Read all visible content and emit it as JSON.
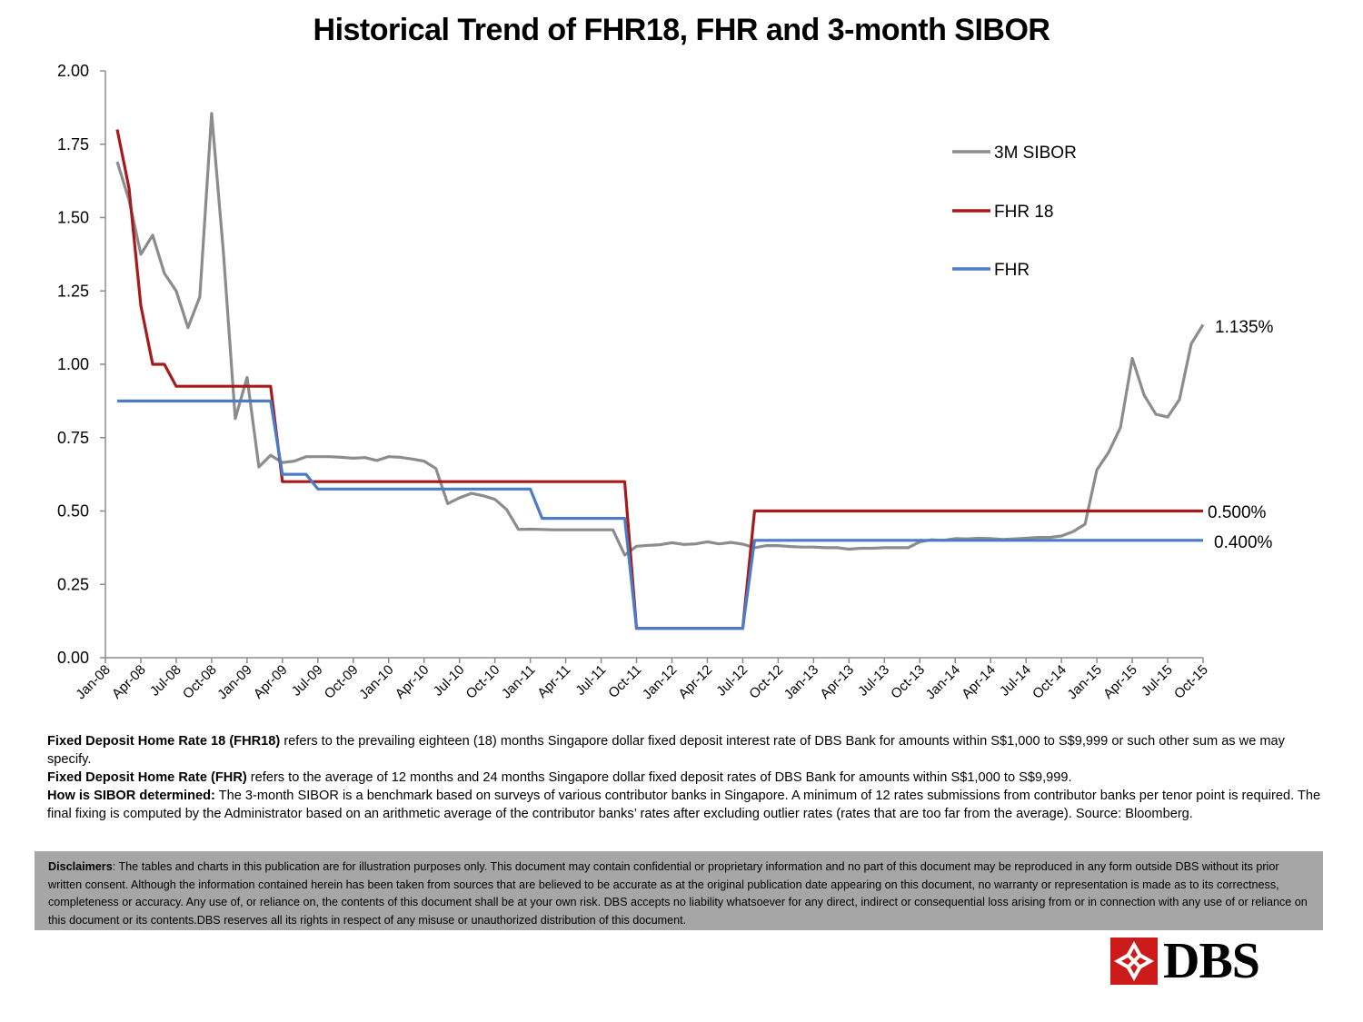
{
  "chart_data": {
    "type": "line",
    "title": "Historical Trend of FHR18, FHR and 3-month SIBOR",
    "ylim": [
      0,
      2
    ],
    "yticks": [
      "0.00",
      "0.25",
      "0.50",
      "0.75",
      "1.00",
      "1.25",
      "1.50",
      "1.75",
      "2.00"
    ],
    "xtick_labels": [
      "Jan-08",
      "Apr-08",
      "Jul-08",
      "Oct-08",
      "Jan-09",
      "Apr-09",
      "Jul-09",
      "Oct-09",
      "Jan-10",
      "Apr-10",
      "Jul-10",
      "Oct-10",
      "Jan-11",
      "Apr-11",
      "Jul-11",
      "Oct-11",
      "Jan-12",
      "Apr-12",
      "Jul-12",
      "Oct-12",
      "Jan-13",
      "Apr-13",
      "Jul-13",
      "Oct-13",
      "Jan-14",
      "Apr-14",
      "Jul-14",
      "Oct-14",
      "Jan-15",
      "Apr-15",
      "Jul-15",
      "Oct-15"
    ],
    "x_range_months": [
      0,
      93
    ],
    "grid": false,
    "legend_position": "top-right",
    "series": [
      {
        "name": "3M SIBOR",
        "color": "#8c8c8c",
        "end_label": "1.135%",
        "points": [
          [
            1,
            1.69
          ],
          [
            2,
            1.56
          ],
          [
            3,
            1.375
          ],
          [
            4,
            1.44
          ],
          [
            5,
            1.31
          ],
          [
            6,
            1.25
          ],
          [
            7,
            1.125
          ],
          [
            8,
            1.23
          ],
          [
            9,
            1.855
          ],
          [
            10,
            1.38
          ],
          [
            11,
            0.815
          ],
          [
            12,
            0.955
          ],
          [
            13,
            0.65
          ],
          [
            14,
            0.69
          ],
          [
            15,
            0.665
          ],
          [
            16,
            0.67
          ],
          [
            17,
            0.685
          ],
          [
            18,
            0.685
          ],
          [
            19,
            0.685
          ],
          [
            20,
            0.683
          ],
          [
            21,
            0.68
          ],
          [
            22,
            0.682
          ],
          [
            23,
            0.672
          ],
          [
            24,
            0.685
          ],
          [
            25,
            0.683
          ],
          [
            26,
            0.677
          ],
          [
            27,
            0.67
          ],
          [
            28,
            0.645
          ],
          [
            29,
            0.525
          ],
          [
            30,
            0.545
          ],
          [
            31,
            0.56
          ],
          [
            32,
            0.552
          ],
          [
            33,
            0.54
          ],
          [
            34,
            0.505
          ],
          [
            35,
            0.437
          ],
          [
            36,
            0.438
          ],
          [
            37,
            0.437
          ],
          [
            38,
            0.436
          ],
          [
            39,
            0.436
          ],
          [
            40,
            0.436
          ],
          [
            41,
            0.436
          ],
          [
            42,
            0.436
          ],
          [
            43,
            0.436
          ],
          [
            44,
            0.35
          ],
          [
            45,
            0.38
          ],
          [
            46,
            0.383
          ],
          [
            47,
            0.385
          ],
          [
            48,
            0.392
          ],
          [
            49,
            0.386
          ],
          [
            50,
            0.388
          ],
          [
            51,
            0.395
          ],
          [
            52,
            0.388
          ],
          [
            53,
            0.393
          ],
          [
            54,
            0.387
          ],
          [
            55,
            0.375
          ],
          [
            56,
            0.382
          ],
          [
            57,
            0.382
          ],
          [
            58,
            0.379
          ],
          [
            59,
            0.377
          ],
          [
            60,
            0.377
          ],
          [
            61,
            0.375
          ],
          [
            62,
            0.375
          ],
          [
            63,
            0.37
          ],
          [
            64,
            0.373
          ],
          [
            65,
            0.373
          ],
          [
            66,
            0.375
          ],
          [
            67,
            0.375
          ],
          [
            68,
            0.375
          ],
          [
            69,
            0.395
          ],
          [
            70,
            0.402
          ],
          [
            71,
            0.4
          ],
          [
            72,
            0.406
          ],
          [
            73,
            0.405
          ],
          [
            74,
            0.407
          ],
          [
            75,
            0.406
          ],
          [
            76,
            0.403
          ],
          [
            77,
            0.405
          ],
          [
            78,
            0.407
          ],
          [
            79,
            0.41
          ],
          [
            80,
            0.41
          ],
          [
            81,
            0.415
          ],
          [
            82,
            0.43
          ],
          [
            83,
            0.455
          ],
          [
            84,
            0.64
          ],
          [
            85,
            0.7
          ],
          [
            86,
            0.785
          ],
          [
            87,
            1.02
          ],
          [
            88,
            0.895
          ],
          [
            89,
            0.83
          ],
          [
            90,
            0.82
          ],
          [
            91,
            0.88
          ],
          [
            92,
            1.07
          ],
          [
            93,
            1.135
          ]
        ]
      },
      {
        "name": "FHR 18",
        "color": "#a51b1b",
        "end_label": "0.500%",
        "points": [
          [
            1,
            1.8
          ],
          [
            2,
            1.6
          ],
          [
            3,
            1.2
          ],
          [
            4,
            1.0
          ],
          [
            5,
            1.0
          ],
          [
            6,
            0.925
          ],
          [
            7,
            0.925
          ],
          [
            8,
            0.925
          ],
          [
            9,
            0.925
          ],
          [
            10,
            0.925
          ],
          [
            11,
            0.925
          ],
          [
            12,
            0.925
          ],
          [
            13,
            0.925
          ],
          [
            14,
            0.925
          ],
          [
            15,
            0.6
          ],
          [
            44,
            0.6
          ],
          [
            45,
            0.1
          ],
          [
            54,
            0.1
          ],
          [
            55,
            0.5
          ],
          [
            93,
            0.5
          ]
        ]
      },
      {
        "name": "FHR",
        "color": "#4a7cc7",
        "end_label": "0.400%",
        "points": [
          [
            1,
            0.875
          ],
          [
            14,
            0.875
          ],
          [
            15,
            0.625
          ],
          [
            17,
            0.625
          ],
          [
            18,
            0.575
          ],
          [
            36,
            0.575
          ],
          [
            37,
            0.475
          ],
          [
            44,
            0.475
          ],
          [
            45,
            0.1
          ],
          [
            54,
            0.1
          ],
          [
            55,
            0.4
          ],
          [
            93,
            0.4
          ]
        ]
      }
    ]
  },
  "notes": {
    "fhr18_term": "Fixed Deposit Home Rate 18 (FHR18)",
    "fhr18_text": " refers to the prevailing eighteen (18) months Singapore dollar fixed deposit interest rate of DBS Bank for amounts within S$1,000 to S$9,999 or such other sum as we may specify.",
    "fhr_term": "Fixed Deposit Home Rate (FHR)",
    "fhr_text": " refers to the average of 12 months and 24 months Singapore dollar fixed deposit rates of DBS Bank for amounts within S$1,000  to S$9,999.",
    "sibor_term": "How is SIBOR determined:",
    "sibor_text": " The 3-month SIBOR is a benchmark based on surveys of various contributor banks in Singapore. A minimum of 12 rates submissions from contributor banks per tenor point is required. The final fixing is computed by the Administrator based on an arithmetic average of the contributor banks’ rates after excluding outlier rates (rates that are too far from the average).  Source: Bloomberg."
  },
  "disclaimer": {
    "term": "Disclaimers",
    "text": ": The tables and charts in this publication are for illustration purposes only. This document may contain confidential or proprietary information and no part of this document may be reproduced in any form outside DBS without its prior written consent. Although the information contained herein has been taken from sources that are believed to be accurate as at the original publication date appearing on this document, no warranty or representation is made as to its correctness, completeness or accuracy. Any use of, or reliance on, the contents of this document shall be at your own risk. DBS accepts no liability whatsoever for any direct, indirect or consequential loss arising from or in connection with any use of or reliance on this document or its contents.DBS reserves all its rights in respect of any misuse or unauthorized distribution of this document."
  },
  "logo": {
    "text": "DBS",
    "color": "#cc1b1b"
  }
}
